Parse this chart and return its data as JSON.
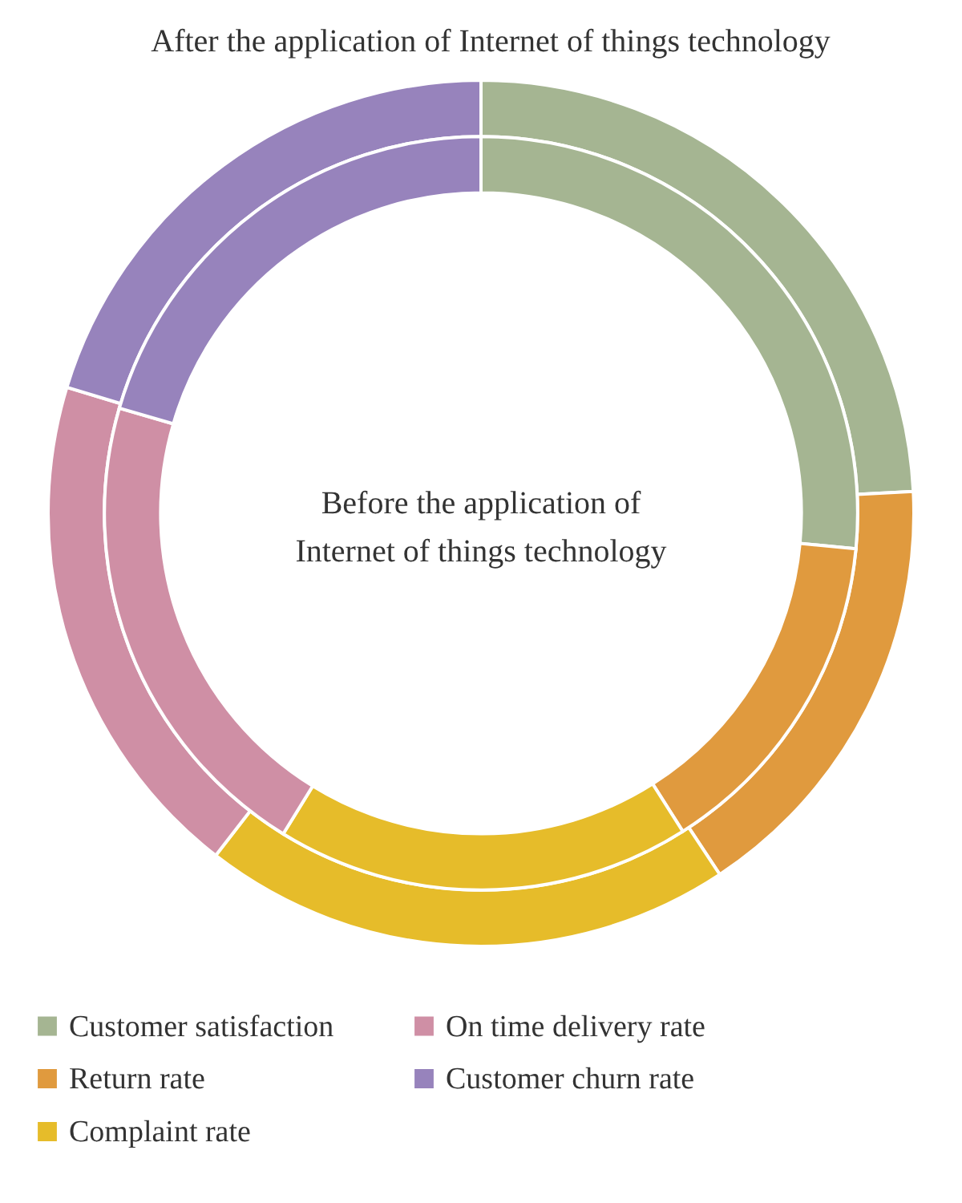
{
  "chart_data": {
    "type": "donut",
    "categories": [
      "Customer satisfaction",
      "Return rate",
      "Complaint rate",
      "On time delivery rate",
      "Customer churn rate"
    ],
    "colors": [
      "#a5b592",
      "#e09a3e",
      "#e6bc2a",
      "#cf8fa5",
      "#9783bc"
    ],
    "series": [
      {
        "name": "After the application of Internet of things technology",
        "values": [
          24.2,
          16.5,
          19.8,
          19.2,
          20.3
        ]
      },
      {
        "name": "Before the application of Internet of things technology",
        "values": [
          26.5,
          14.5,
          17.8,
          20.7,
          20.5
        ]
      }
    ],
    "legend": "bottom"
  }
}
